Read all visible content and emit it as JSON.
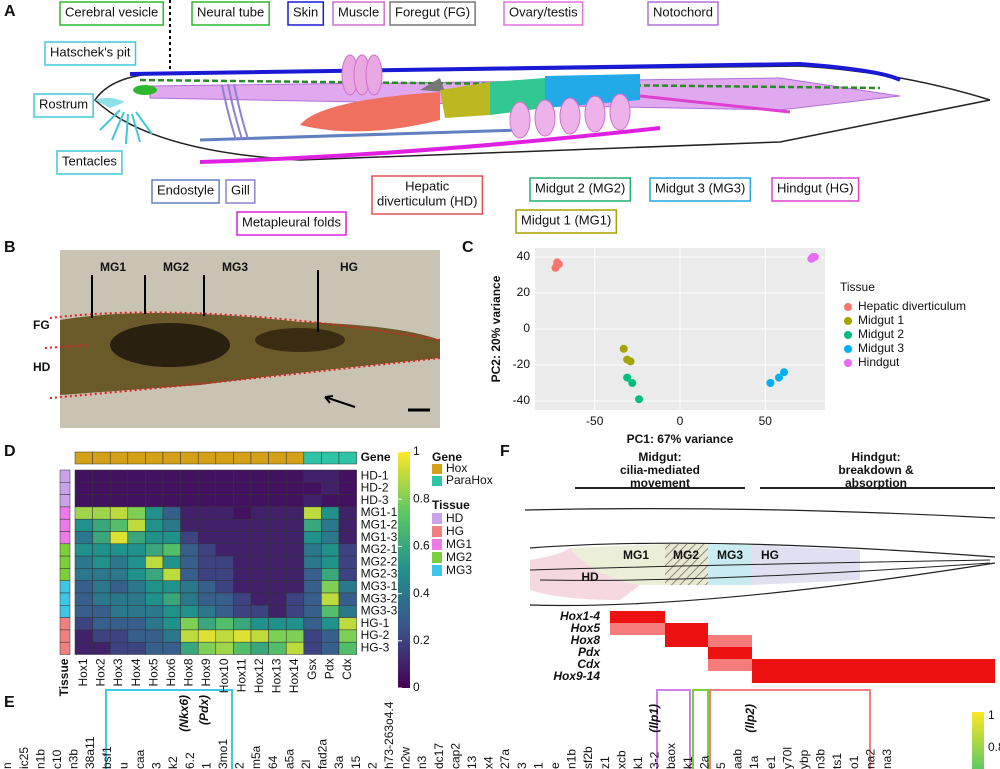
{
  "panels": [
    "A",
    "B",
    "C",
    "D",
    "E",
    "F"
  ],
  "anatomy": {
    "labels": [
      {
        "text": [
          "Cerebral vesicle"
        ],
        "color": "#2db82d"
      },
      {
        "text": [
          "Neural tube"
        ],
        "color": "#2db82d"
      },
      {
        "text": [
          "Skin"
        ],
        "color": "#1a1ad6"
      },
      {
        "text": [
          "Muscle"
        ],
        "color": "#d070c8"
      },
      {
        "text": [
          "Foregut (FG)"
        ],
        "color": "#777777"
      },
      {
        "text": [
          "Ovary/testis"
        ],
        "color": "#e070e0"
      },
      {
        "text": [
          "Notochord"
        ],
        "color": "#b070d8"
      },
      {
        "text": [
          "Hatschek's pit"
        ],
        "color": "#40c8d8"
      },
      {
        "text": [
          "Rostrum"
        ],
        "color": "#40c8d8"
      },
      {
        "text": [
          "Tentacles"
        ],
        "color": "#40c8d8"
      },
      {
        "text": [
          "Endostyle"
        ],
        "color": "#6080c0"
      },
      {
        "text": [
          "Gill"
        ],
        "color": "#9080d0"
      },
      {
        "text": [
          "Metapleural folds"
        ],
        "color": "#e020e0"
      },
      {
        "text": [
          "Hepatic",
          "diverticulum (HD)"
        ],
        "color": "#e05050"
      },
      {
        "text": [
          "Midgut 1 (MG1)"
        ],
        "color": "#a8a000"
      },
      {
        "text": [
          "Midgut 2 (MG2)"
        ],
        "color": "#20b070"
      },
      {
        "text": [
          "Midgut 3 (MG3)"
        ],
        "color": "#20a8e0"
      },
      {
        "text": [
          "Hindgut (HG)"
        ],
        "color": "#e040d0"
      }
    ]
  },
  "photo": {
    "labels": [
      "MG1",
      "MG2",
      "MG3",
      "HG",
      "FG",
      "HD"
    ]
  },
  "chart_data": [
    {
      "type": "scatter",
      "x_label": "PC1: 67% variance",
      "y_label": "PC2: 20% variance",
      "legend_title": "Tissue",
      "xlim": [
        -85,
        85
      ],
      "xticks": [
        -50,
        0,
        50
      ],
      "ylim": [
        -45,
        45
      ],
      "yticks": [
        -40,
        -20,
        0,
        20,
        40
      ],
      "grid": true,
      "series": [
        {
          "name": "Hepatic diverticulum",
          "color": "#F8766D",
          "x": [
            -73,
            -72,
            -71
          ],
          "values": [
            34,
            37,
            36
          ]
        },
        {
          "name": "Midgut 1",
          "color": "#A3A500",
          "x": [
            -33,
            -31,
            -29
          ],
          "values": [
            -11,
            -17,
            -18
          ]
        },
        {
          "name": "Midgut 2",
          "color": "#00BF7D",
          "x": [
            -31,
            -28,
            -24
          ],
          "values": [
            -27,
            -30,
            -39
          ]
        },
        {
          "name": "Midgut 3",
          "color": "#00B0F6",
          "x": [
            53,
            58,
            61
          ],
          "values": [
            -30,
            -27,
            -24
          ]
        },
        {
          "name": "Hindgut",
          "color": "#E76BF3",
          "x": [
            77,
            78,
            79
          ],
          "values": [
            39,
            40,
            40
          ]
        }
      ]
    },
    {
      "type": "heatmap",
      "columns": [
        "Hox1",
        "Hox2",
        "Hox3",
        "Hox4",
        "Hox5",
        "Hox6",
        "Hox8",
        "Hox9",
        "Hox10",
        "Hox11",
        "Hox12",
        "Hox13",
        "Hox14",
        "Gsx",
        "Pdx",
        "Cdx"
      ],
      "rows": [
        "HD-1",
        "HD-2",
        "HD-3",
        "MG1-1",
        "MG1-2",
        "MG1-3",
        "MG2-1",
        "MG2-2",
        "MG2-3",
        "MG3-1",
        "MG3-2",
        "MG3-3",
        "HG-1",
        "HG-2",
        "HG-3"
      ],
      "values": [
        [
          0.05,
          0.05,
          0.05,
          0.05,
          0.05,
          0.05,
          0.05,
          0.05,
          0.05,
          0.05,
          0.05,
          0.05,
          0.05,
          0.1,
          0.1,
          0.05
        ],
        [
          0.05,
          0.05,
          0.05,
          0.05,
          0.05,
          0.05,
          0.05,
          0.05,
          0.05,
          0.05,
          0.05,
          0.05,
          0.05,
          0.05,
          0.1,
          0.05
        ],
        [
          0.05,
          0.05,
          0.05,
          0.05,
          0.05,
          0.05,
          0.05,
          0.05,
          0.05,
          0.05,
          0.05,
          0.05,
          0.05,
          0.1,
          0.05,
          0.05
        ],
        [
          0.85,
          0.85,
          0.9,
          0.8,
          0.5,
          0.3,
          0.1,
          0.1,
          0.1,
          0.05,
          0.1,
          0.1,
          0.1,
          0.9,
          0.5,
          0.1
        ],
        [
          0.5,
          0.6,
          0.7,
          0.9,
          0.5,
          0.4,
          0.1,
          0.1,
          0.1,
          0.1,
          0.1,
          0.1,
          0.1,
          0.6,
          0.4,
          0.1
        ],
        [
          0.4,
          0.6,
          0.95,
          0.6,
          0.5,
          0.5,
          0.2,
          0.1,
          0.1,
          0.1,
          0.1,
          0.1,
          0.1,
          0.5,
          0.4,
          0.1
        ],
        [
          0.5,
          0.5,
          0.5,
          0.5,
          0.6,
          0.7,
          0.3,
          0.2,
          0.1,
          0.1,
          0.1,
          0.1,
          0.1,
          0.4,
          0.5,
          0.2
        ],
        [
          0.4,
          0.5,
          0.4,
          0.5,
          0.9,
          0.5,
          0.3,
          0.2,
          0.2,
          0.1,
          0.1,
          0.1,
          0.1,
          0.4,
          0.5,
          0.2
        ],
        [
          0.4,
          0.4,
          0.4,
          0.5,
          0.6,
          0.9,
          0.3,
          0.2,
          0.2,
          0.1,
          0.1,
          0.1,
          0.1,
          0.3,
          0.6,
          0.2
        ],
        [
          0.3,
          0.4,
          0.3,
          0.4,
          0.5,
          0.5,
          0.4,
          0.3,
          0.2,
          0.1,
          0.1,
          0.1,
          0.1,
          0.3,
          0.8,
          0.4
        ],
        [
          0.3,
          0.4,
          0.4,
          0.4,
          0.5,
          0.6,
          0.4,
          0.3,
          0.3,
          0.2,
          0.1,
          0.1,
          0.2,
          0.3,
          0.9,
          0.3
        ],
        [
          0.3,
          0.3,
          0.4,
          0.4,
          0.4,
          0.5,
          0.5,
          0.4,
          0.3,
          0.2,
          0.2,
          0.1,
          0.2,
          0.3,
          0.7,
          0.4
        ],
        [
          0.2,
          0.3,
          0.3,
          0.3,
          0.4,
          0.5,
          0.8,
          0.6,
          0.7,
          0.6,
          0.5,
          0.5,
          0.5,
          0.3,
          0.5,
          0.9
        ],
        [
          0.1,
          0.2,
          0.2,
          0.3,
          0.3,
          0.4,
          0.9,
          0.95,
          0.9,
          0.95,
          0.9,
          0.8,
          0.8,
          0.2,
          0.3,
          0.8
        ],
        [
          0.1,
          0.1,
          0.2,
          0.2,
          0.3,
          0.3,
          0.6,
          0.8,
          0.85,
          0.7,
          0.6,
          0.7,
          0.9,
          0.2,
          0.3,
          0.7
        ]
      ],
      "zlim": [
        0,
        1
      ],
      "zticks": [
        0,
        0.2,
        0.4,
        0.6,
        0.8,
        1
      ],
      "gene_title": "Gene",
      "tissue_title": "Tissue",
      "tissue_axis_label": "Tissue",
      "gene_groups": [
        {
          "name": "Hox",
          "color": "#d4a017"
        },
        {
          "name": "ParaHox",
          "color": "#2ec4a6"
        }
      ],
      "column_group": [
        0,
        0,
        0,
        0,
        0,
        0,
        0,
        0,
        0,
        0,
        0,
        0,
        0,
        1,
        1,
        1
      ],
      "tissue_groups": [
        {
          "name": "HD",
          "color": "#c9a3ea"
        },
        {
          "name": "HG",
          "color": "#f08080"
        },
        {
          "name": "MG1",
          "color": "#ee7ae8"
        },
        {
          "name": "MG2",
          "color": "#7ccf3c"
        },
        {
          "name": "MG3",
          "color": "#3ec6e8"
        }
      ],
      "row_group": [
        0,
        0,
        0,
        2,
        2,
        2,
        3,
        3,
        3,
        4,
        4,
        4,
        1,
        1,
        1
      ]
    }
  ],
  "model": {
    "midgut": [
      "Midgut:",
      "cilia-mediated",
      "movement"
    ],
    "hindgut": [
      "Hindgut:",
      "breakdown &",
      "absorption"
    ],
    "regions": [
      "HD",
      "MG1",
      "MG2",
      "MG3",
      "HG"
    ],
    "genes": [
      "Hox1-4",
      "Hox5",
      "Hox8",
      "Pdx",
      "Cdx",
      "Hox9-14"
    ],
    "expression_color": "#ee1111"
  },
  "genes_panel": {
    "highlights": [
      "(Nkx6)",
      "(Pdx)",
      "(Ilp1)",
      "(Ilp2)"
    ],
    "labels": [
      "n",
      "ic25",
      "n1b",
      "c10",
      "n3b",
      "38a11",
      "bsf1",
      "u",
      "caa",
      "3",
      "k2",
      "6.2",
      "1",
      "3mo1",
      "2",
      "m5a",
      "64",
      "a5a",
      "2l",
      "fad2a",
      "3a",
      "15",
      "2",
      "h73-263o4.4",
      "n2w",
      "n3",
      "dc17",
      "cap2",
      "13",
      "x4",
      "27a",
      "3",
      "1",
      "e",
      "n1b",
      "sf2b",
      "z1",
      "xcb",
      "k1",
      "3-2",
      "baox",
      "k1",
      "2a",
      "5",
      "aab",
      "1a",
      "e1",
      "y70l",
      "ybp",
      "n3b",
      "ts1",
      "o1",
      "na2",
      "na3"
    ],
    "colorbar_ticks": [
      1,
      0.8
    ]
  }
}
